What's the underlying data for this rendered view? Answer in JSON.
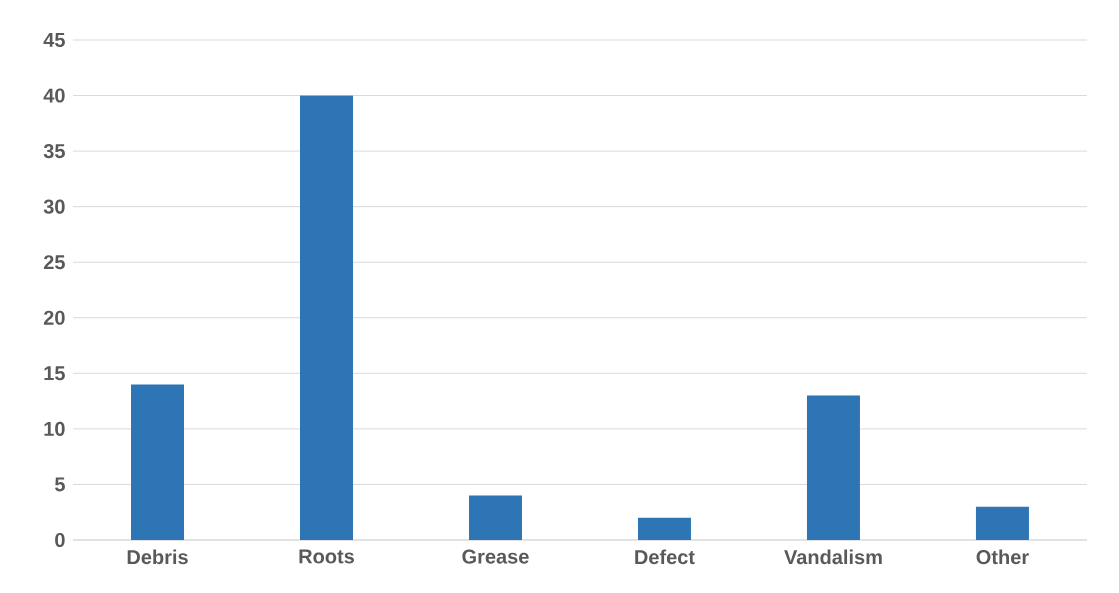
{
  "chart_data": {
    "type": "bar",
    "categories": [
      "Debris",
      "Roots",
      "Grease",
      "Defect",
      "Vandalism",
      "Other"
    ],
    "values": [
      14,
      40,
      4,
      2,
      13,
      3
    ],
    "color": "#2e75b6",
    "ylim": [
      0,
      45
    ],
    "yticks": [
      0,
      5,
      10,
      15,
      20,
      25,
      30,
      35,
      40,
      45
    ],
    "grid": "y"
  }
}
